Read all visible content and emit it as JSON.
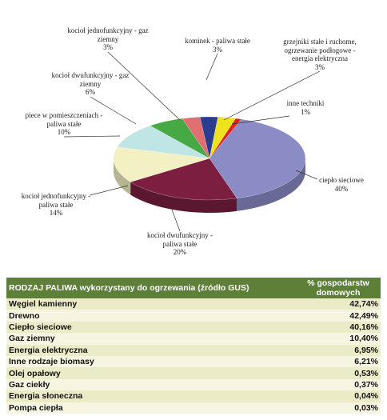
{
  "chart_data": {
    "type": "pie",
    "categories": [
      "kominek - paliwa stałe",
      "grzejniki stałe i ruchome, ogrzewanie podłogowe - energia elektryczna",
      "inne techniki",
      "ciepło sieciowe",
      "kocioł dwufunkcyjny - paliwa stałe",
      "kocioł jednofunkcyjny - paliwa stałe",
      "piece w pomieszczeniach - paliwa stałe",
      "kocioł dwufunkcyjny - gaz ziemny",
      "kocioł jednofunkcyjny - gaz ziemny"
    ],
    "values": [
      3,
      3,
      1,
      40,
      20,
      14,
      10,
      6,
      3
    ],
    "value_labels": [
      "3%",
      "3%",
      "1%",
      "40%",
      "20%",
      "14%",
      "10%",
      "6%",
      "3%"
    ],
    "colors": [
      "#2b3d8e",
      "#efe21e",
      "#e3201f",
      "#8b8cc6",
      "#7b1e40",
      "#f3f1c4",
      "#bfe5e5",
      "#46a944",
      "#e06f72"
    ]
  },
  "table": {
    "header": [
      "RODZAJ PALIWA wykorzystany do ogrzewania (źródło GUS)",
      "% gospodarstw domowych"
    ],
    "rows": [
      [
        "Węgiel kamienny",
        "42,74%"
      ],
      [
        "Drewno",
        "42,49%"
      ],
      [
        "Ciepło sieciowe",
        "40,16%"
      ],
      [
        "Gaz ziemny",
        "10,40%"
      ],
      [
        "Energia elektryczna",
        "6,95%"
      ],
      [
        "Inne rodzaje biomasy",
        "6,21%"
      ],
      [
        "Olej opałowy",
        "0,53%"
      ],
      [
        "Gaz ciekły",
        "0,37%"
      ],
      [
        "Energia słoneczna",
        "0,04%"
      ],
      [
        "Pompa ciepła",
        "0,03%"
      ]
    ]
  }
}
